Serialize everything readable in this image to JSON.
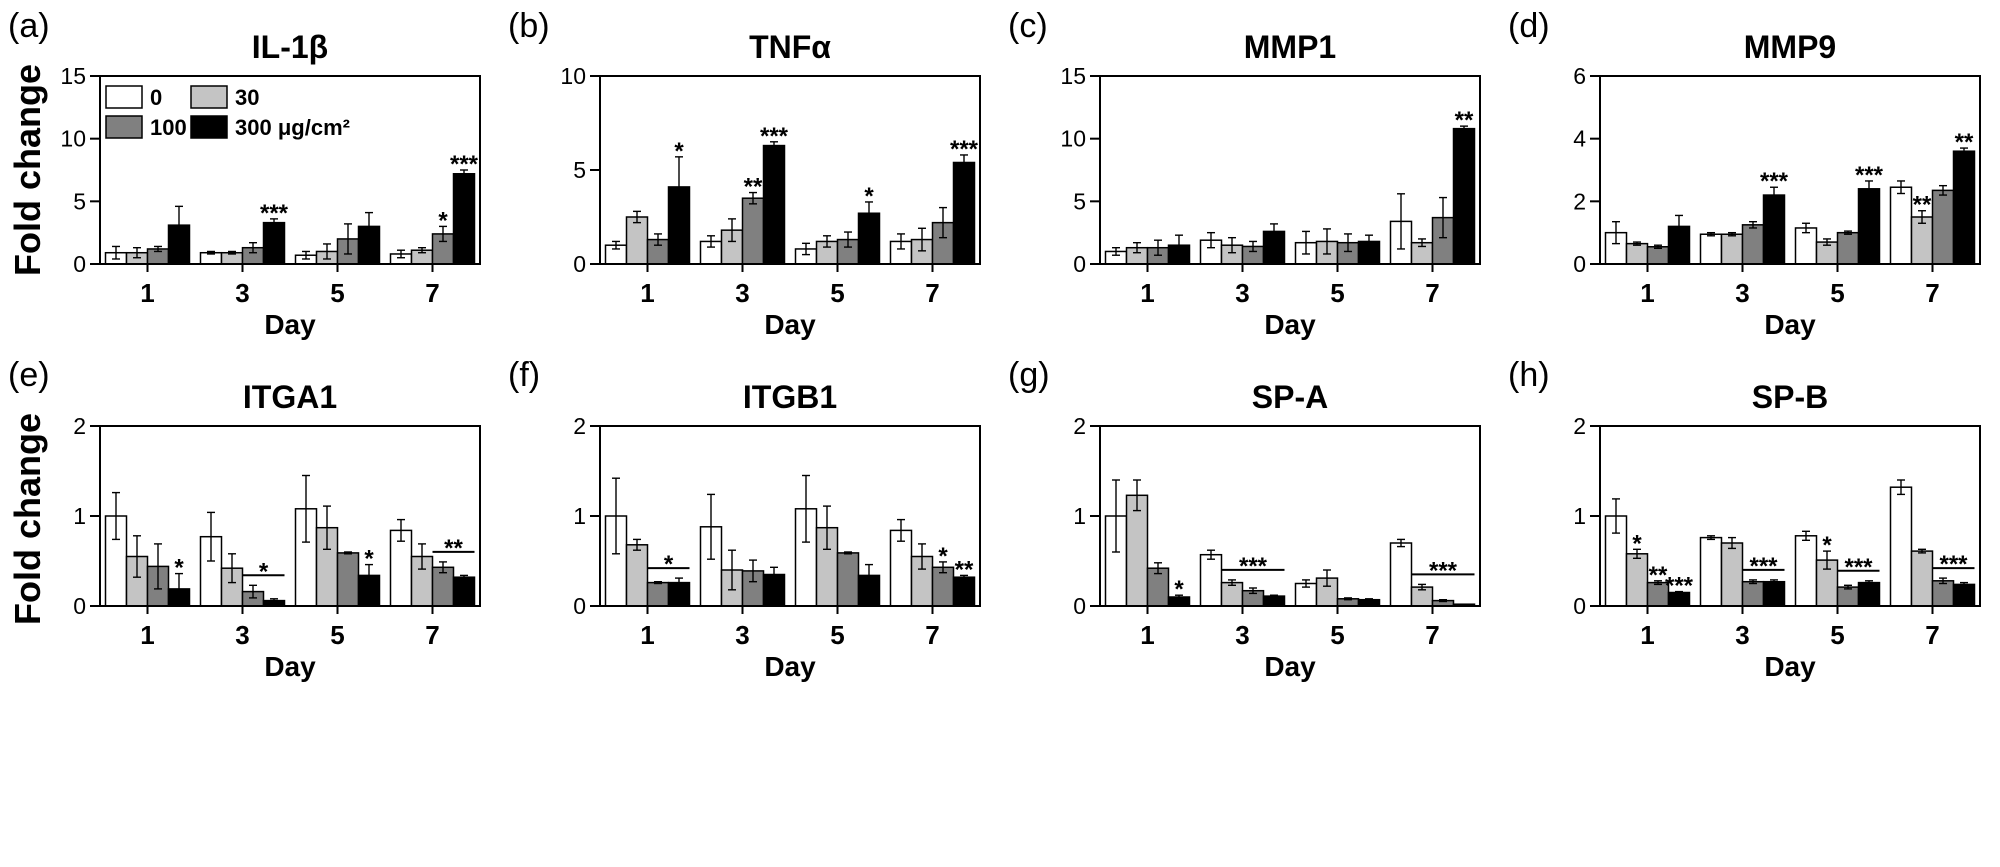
{
  "figure": {
    "ylabel_top": "Fold change",
    "ylabel_bottom": "Fold change"
  },
  "legend": {
    "items": [
      {
        "label": "0",
        "color": "#ffffff"
      },
      {
        "label": "30",
        "color": "#c4c4c4"
      },
      {
        "label": "100",
        "color": "#808080"
      },
      {
        "label": "300 μg/cm²",
        "color": "#000000"
      }
    ]
  },
  "chart_data": [
    {
      "panel": "(a)",
      "title": "IL-1β",
      "type": "bar",
      "xlabel": "Day",
      "categories": [
        "1",
        "3",
        "5",
        "7"
      ],
      "ylim": [
        0,
        15
      ],
      "yticks": [
        "0",
        "5",
        "10",
        "15"
      ],
      "series": [
        {
          "name": "0",
          "values": [
            0.9,
            0.9,
            0.7,
            0.8
          ],
          "errors": [
            0.5,
            0.1,
            0.3,
            0.3
          ]
        },
        {
          "name": "30",
          "values": [
            0.9,
            0.9,
            1.0,
            1.1
          ],
          "errors": [
            0.4,
            0.1,
            0.6,
            0.2
          ]
        },
        {
          "name": "100",
          "values": [
            1.2,
            1.3,
            2.0,
            2.4
          ],
          "errors": [
            0.2,
            0.4,
            1.2,
            0.6
          ]
        },
        {
          "name": "300 μg/cm²",
          "values": [
            3.1,
            3.3,
            3.0,
            7.2
          ],
          "errors": [
            1.5,
            0.3,
            1.1,
            0.3
          ]
        }
      ],
      "annotations": [
        {
          "text": "***",
          "category": 1,
          "series": 3
        },
        {
          "text": "*",
          "category": 3,
          "series": 2
        },
        {
          "text": "***",
          "category": 3,
          "series": 3
        }
      ]
    },
    {
      "panel": "(b)",
      "title": "TNFα",
      "type": "bar",
      "xlabel": "Day",
      "categories": [
        "1",
        "3",
        "5",
        "7"
      ],
      "ylim": [
        0,
        10
      ],
      "yticks": [
        "0",
        "5",
        "10"
      ],
      "series": [
        {
          "name": "0",
          "values": [
            1.0,
            1.2,
            0.8,
            1.2
          ],
          "errors": [
            0.2,
            0.3,
            0.3,
            0.4
          ]
        },
        {
          "name": "30",
          "values": [
            2.5,
            1.8,
            1.2,
            1.3
          ],
          "errors": [
            0.3,
            0.6,
            0.3,
            0.6
          ]
        },
        {
          "name": "100",
          "values": [
            1.3,
            3.5,
            1.3,
            2.2
          ],
          "errors": [
            0.3,
            0.3,
            0.4,
            0.8
          ]
        },
        {
          "name": "300 μg/cm²",
          "values": [
            4.1,
            6.3,
            2.7,
            5.4
          ],
          "errors": [
            1.6,
            0.2,
            0.6,
            0.4
          ]
        }
      ],
      "annotations": [
        {
          "text": "*",
          "category": 0,
          "series": 3
        },
        {
          "text": "**",
          "category": 1,
          "series": 2
        },
        {
          "text": "***",
          "category": 1,
          "series": 3
        },
        {
          "text": "*",
          "category": 2,
          "series": 3
        },
        {
          "text": "***",
          "category": 3,
          "series": 3
        }
      ]
    },
    {
      "panel": "(c)",
      "title": "MMP1",
      "type": "bar",
      "xlabel": "Day",
      "categories": [
        "1",
        "3",
        "5",
        "7"
      ],
      "ylim": [
        0,
        15
      ],
      "yticks": [
        "0",
        "5",
        "10",
        "15"
      ],
      "series": [
        {
          "name": "0",
          "values": [
            1.0,
            1.9,
            1.7,
            3.4
          ],
          "errors": [
            0.3,
            0.6,
            0.9,
            2.2
          ]
        },
        {
          "name": "30",
          "values": [
            1.3,
            1.5,
            1.8,
            1.7
          ],
          "errors": [
            0.4,
            0.6,
            1.0,
            0.3
          ]
        },
        {
          "name": "100",
          "values": [
            1.3,
            1.4,
            1.7,
            3.7
          ],
          "errors": [
            0.6,
            0.4,
            0.7,
            1.6
          ]
        },
        {
          "name": "300 μg/cm²",
          "values": [
            1.5,
            2.6,
            1.8,
            10.8
          ],
          "errors": [
            0.8,
            0.6,
            0.5,
            0.2
          ]
        }
      ],
      "annotations": [
        {
          "text": "**",
          "category": 3,
          "series": 3
        }
      ]
    },
    {
      "panel": "(d)",
      "title": "MMP9",
      "type": "bar",
      "xlabel": "Day",
      "categories": [
        "1",
        "3",
        "5",
        "7"
      ],
      "ylim": [
        0,
        6
      ],
      "yticks": [
        "0",
        "2",
        "4",
        "6"
      ],
      "series": [
        {
          "name": "0",
          "values": [
            1.0,
            0.95,
            1.15,
            2.45
          ],
          "errors": [
            0.35,
            0.05,
            0.15,
            0.2
          ]
        },
        {
          "name": "30",
          "values": [
            0.65,
            0.95,
            0.7,
            1.5
          ],
          "errors": [
            0.05,
            0.05,
            0.1,
            0.2
          ]
        },
        {
          "name": "100",
          "values": [
            0.55,
            1.25,
            1.0,
            2.35
          ],
          "errors": [
            0.05,
            0.1,
            0.05,
            0.15
          ]
        },
        {
          "name": "300 μg/cm²",
          "values": [
            1.2,
            2.2,
            2.4,
            3.6
          ],
          "errors": [
            0.35,
            0.25,
            0.25,
            0.1
          ]
        }
      ],
      "annotations": [
        {
          "text": "***",
          "category": 1,
          "series": 3
        },
        {
          "text": "***",
          "category": 2,
          "series": 3
        },
        {
          "text": "**",
          "category": 3,
          "series": 1
        },
        {
          "text": "**",
          "category": 3,
          "series": 3
        }
      ]
    },
    {
      "panel": "(e)",
      "title": "ITGA1",
      "type": "bar",
      "xlabel": "Day",
      "categories": [
        "1",
        "3",
        "5",
        "7"
      ],
      "ylim": [
        0,
        2
      ],
      "yticks": [
        "0",
        "1",
        "2"
      ],
      "series": [
        {
          "name": "0",
          "values": [
            1.0,
            0.77,
            1.08,
            0.84
          ],
          "errors": [
            0.26,
            0.27,
            0.37,
            0.12
          ]
        },
        {
          "name": "30",
          "values": [
            0.55,
            0.42,
            0.87,
            0.55
          ],
          "errors": [
            0.23,
            0.16,
            0.24,
            0.14
          ]
        },
        {
          "name": "100",
          "values": [
            0.44,
            0.16,
            0.59,
            0.43
          ],
          "errors": [
            0.25,
            0.07,
            0.01,
            0.06
          ]
        },
        {
          "name": "300 μg/cm²",
          "values": [
            0.19,
            0.06,
            0.34,
            0.32
          ],
          "errors": [
            0.17,
            0.02,
            0.12,
            0.02
          ]
        }
      ],
      "annotations": [
        {
          "text": "*",
          "category": 0,
          "series": 3
        },
        {
          "text": "*",
          "category": 1,
          "series": 3,
          "bracket": [
            2,
            3
          ]
        },
        {
          "text": "*",
          "category": 2,
          "series": 3
        },
        {
          "text": "**",
          "category": 3,
          "series": 2,
          "bracket": [
            2,
            3
          ]
        }
      ]
    },
    {
      "panel": "(f)",
      "title": "ITGB1",
      "type": "bar",
      "xlabel": "Day",
      "categories": [
        "1",
        "3",
        "5",
        "7"
      ],
      "ylim": [
        0,
        2
      ],
      "yticks": [
        "0",
        "1",
        "2"
      ],
      "series": [
        {
          "name": "0",
          "values": [
            1.0,
            0.88,
            1.08,
            0.84
          ],
          "errors": [
            0.42,
            0.36,
            0.37,
            0.12
          ]
        },
        {
          "name": "30",
          "values": [
            0.68,
            0.4,
            0.87,
            0.55
          ],
          "errors": [
            0.06,
            0.22,
            0.24,
            0.14
          ]
        },
        {
          "name": "100",
          "values": [
            0.26,
            0.39,
            0.59,
            0.43
          ],
          "errors": [
            0.01,
            0.12,
            0.01,
            0.06
          ]
        },
        {
          "name": "300 μg/cm²",
          "values": [
            0.26,
            0.35,
            0.34,
            0.32
          ],
          "errors": [
            0.05,
            0.08,
            0.12,
            0.02
          ]
        }
      ],
      "annotations": [
        {
          "text": "*",
          "category": 0,
          "series": 3,
          "bracket": [
            2,
            3
          ]
        },
        {
          "text": "*",
          "category": 3,
          "series": 2
        },
        {
          "text": "**",
          "category": 3,
          "series": 3
        }
      ]
    },
    {
      "panel": "(g)",
      "title": "SP-A",
      "type": "bar",
      "xlabel": "Day",
      "categories": [
        "1",
        "3",
        "5",
        "7"
      ],
      "ylim": [
        0,
        2
      ],
      "yticks": [
        "0",
        "1",
        "2"
      ],
      "series": [
        {
          "name": "0",
          "values": [
            1.0,
            0.57,
            0.25,
            0.7
          ],
          "errors": [
            0.4,
            0.05,
            0.04,
            0.04
          ]
        },
        {
          "name": "30",
          "values": [
            1.23,
            0.26,
            0.31,
            0.21
          ],
          "errors": [
            0.17,
            0.03,
            0.09,
            0.03
          ]
        },
        {
          "name": "100",
          "values": [
            0.42,
            0.17,
            0.08,
            0.06
          ],
          "errors": [
            0.06,
            0.03,
            0.01,
            0.01
          ]
        },
        {
          "name": "300 μg/cm²",
          "values": [
            0.1,
            0.11,
            0.07,
            0.02
          ],
          "errors": [
            0.02,
            0.01,
            0.01,
            0.0
          ]
        }
      ],
      "annotations": [
        {
          "text": "*",
          "category": 0,
          "series": 3
        },
        {
          "text": "***",
          "category": 1,
          "series": 2,
          "bracket": [
            1,
            3
          ]
        },
        {
          "text": "***",
          "category": 3,
          "series": 2,
          "bracket": [
            1,
            3
          ]
        }
      ]
    },
    {
      "panel": "(h)",
      "title": "SP-B",
      "type": "bar",
      "xlabel": "Day",
      "categories": [
        "1",
        "3",
        "5",
        "7"
      ],
      "ylim": [
        0,
        2
      ],
      "yticks": [
        "0",
        "1",
        "2"
      ],
      "series": [
        {
          "name": "0",
          "values": [
            1.0,
            0.76,
            0.78,
            1.32
          ],
          "errors": [
            0.19,
            0.02,
            0.05,
            0.08
          ]
        },
        {
          "name": "30",
          "values": [
            0.58,
            0.7,
            0.51,
            0.61
          ],
          "errors": [
            0.05,
            0.06,
            0.1,
            0.02
          ]
        },
        {
          "name": "100",
          "values": [
            0.26,
            0.27,
            0.21,
            0.28
          ],
          "errors": [
            0.02,
            0.02,
            0.02,
            0.03
          ]
        },
        {
          "name": "300 μg/cm²",
          "values": [
            0.15,
            0.27,
            0.26,
            0.24
          ],
          "errors": [
            0.01,
            0.02,
            0.02,
            0.02
          ]
        }
      ],
      "annotations": [
        {
          "text": "*",
          "category": 0,
          "series": 1
        },
        {
          "text": "**",
          "category": 0,
          "series": 2
        },
        {
          "text": "***",
          "category": 0,
          "series": 3
        },
        {
          "text": "***",
          "category": 1,
          "series": 2,
          "bracket": [
            2,
            3
          ]
        },
        {
          "text": "*",
          "category": 2,
          "series": 1
        },
        {
          "text": "***",
          "category": 2,
          "series": 2,
          "bracket": [
            2,
            3
          ]
        },
        {
          "text": "***",
          "category": 3,
          "series": 2,
          "bracket": [
            2,
            3
          ]
        }
      ]
    }
  ]
}
